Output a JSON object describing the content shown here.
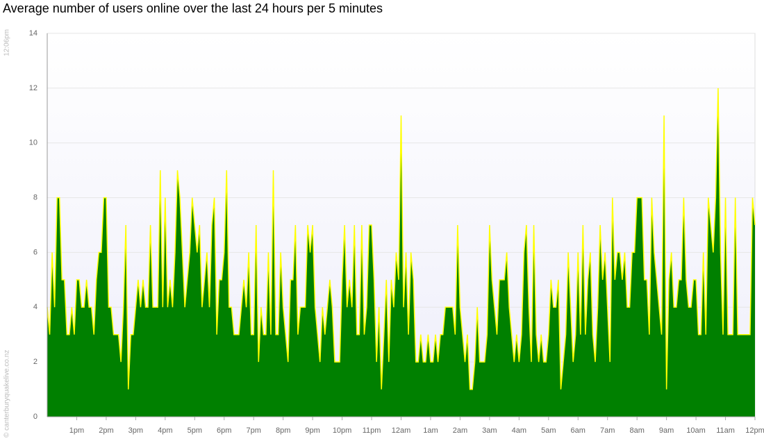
{
  "chart_data": {
    "type": "area",
    "title": "Average number of users online over the last 24 hours per 5 minutes",
    "timestamp": "12:06pm",
    "credit": "© canterburyquakelive.co.nz",
    "categories": [
      null,
      null,
      null,
      null,
      null,
      null,
      null,
      null,
      null,
      null,
      null,
      null,
      "1pm",
      null,
      null,
      null,
      null,
      null,
      null,
      null,
      null,
      null,
      null,
      null,
      "2pm",
      null,
      null,
      null,
      null,
      null,
      null,
      null,
      null,
      null,
      null,
      null,
      "3pm",
      null,
      null,
      null,
      null,
      null,
      null,
      null,
      null,
      null,
      null,
      null,
      "4pm",
      null,
      null,
      null,
      null,
      null,
      null,
      null,
      null,
      null,
      null,
      null,
      "5pm",
      null,
      null,
      null,
      null,
      null,
      null,
      null,
      null,
      null,
      null,
      null,
      "6pm",
      null,
      null,
      null,
      null,
      null,
      null,
      null,
      null,
      null,
      null,
      null,
      "7pm",
      null,
      null,
      null,
      null,
      null,
      null,
      null,
      null,
      null,
      null,
      null,
      "8pm",
      null,
      null,
      null,
      null,
      null,
      null,
      null,
      null,
      null,
      null,
      null,
      "9pm",
      null,
      null,
      null,
      null,
      null,
      null,
      null,
      null,
      null,
      null,
      null,
      "10pm",
      null,
      null,
      null,
      null,
      null,
      null,
      null,
      null,
      null,
      null,
      null,
      "11pm",
      null,
      null,
      null,
      null,
      null,
      null,
      null,
      null,
      null,
      null,
      null,
      "12am",
      null,
      null,
      null,
      null,
      null,
      null,
      null,
      null,
      null,
      null,
      null,
      "1am",
      null,
      null,
      null,
      null,
      null,
      null,
      null,
      null,
      null,
      null,
      null,
      "2am",
      null,
      null,
      null,
      null,
      null,
      null,
      null,
      null,
      null,
      null,
      null,
      "3am",
      null,
      null,
      null,
      null,
      null,
      null,
      null,
      null,
      null,
      null,
      null,
      "4am",
      null,
      null,
      null,
      null,
      null,
      null,
      null,
      null,
      null,
      null,
      null,
      "5am",
      null,
      null,
      null,
      null,
      null,
      null,
      null,
      null,
      null,
      null,
      null,
      "6am",
      null,
      null,
      null,
      null,
      null,
      null,
      null,
      null,
      null,
      null,
      null,
      "7am",
      null,
      null,
      null,
      null,
      null,
      null,
      null,
      null,
      null,
      null,
      null,
      "8am",
      null,
      null,
      null,
      null,
      null,
      null,
      null,
      null,
      null,
      null,
      null,
      "9am",
      null,
      null,
      null,
      null,
      null,
      null,
      null,
      null,
      null,
      null,
      null,
      "10am",
      null,
      null,
      null,
      null,
      null,
      null,
      null,
      null,
      null,
      null,
      null,
      "11am",
      null,
      null,
      null,
      null,
      null,
      null,
      null,
      null,
      null,
      null,
      null,
      "12pm"
    ],
    "values": [
      4,
      3,
      6,
      4,
      8,
      8,
      5,
      5,
      3,
      3,
      4,
      3,
      5,
      5,
      4,
      4,
      5,
      4,
      4,
      3,
      5,
      6,
      6,
      8,
      8,
      4,
      4,
      3,
      3,
      3,
      2,
      4,
      7,
      1,
      3,
      3,
      4,
      5,
      4,
      5,
      4,
      4,
      7,
      4,
      4,
      4,
      9,
      4,
      8,
      4,
      5,
      4,
      6,
      9,
      8,
      6,
      4,
      5,
      6,
      8,
      7,
      6,
      7,
      4,
      5,
      6,
      4,
      7,
      8,
      3,
      5,
      5,
      6,
      9,
      4,
      4,
      3,
      3,
      3,
      4,
      5,
      4,
      6,
      3,
      3,
      7,
      2,
      4,
      3,
      3,
      6,
      3,
      9,
      3,
      3,
      6,
      4,
      3,
      2,
      5,
      5,
      7,
      3,
      4,
      4,
      4,
      7,
      6,
      7,
      4,
      3,
      2,
      4,
      3,
      4,
      5,
      4,
      2,
      2,
      2,
      5,
      7,
      4,
      5,
      4,
      7,
      3,
      3,
      7,
      3,
      4,
      7,
      7,
      5,
      2,
      4,
      1,
      3,
      5,
      2,
      5,
      4,
      6,
      5,
      11,
      4,
      6,
      3,
      6,
      5,
      2,
      2,
      3,
      2,
      2,
      3,
      2,
      2,
      3,
      2,
      3,
      3,
      4,
      4,
      4,
      4,
      3,
      7,
      4,
      3,
      2,
      3,
      1,
      1,
      2,
      4,
      2,
      2,
      2,
      3,
      7,
      5,
      4,
      3,
      5,
      5,
      5,
      6,
      4,
      3,
      2,
      3,
      2,
      3,
      6,
      7,
      4,
      2,
      7,
      3,
      2,
      3,
      2,
      2,
      3,
      5,
      4,
      4,
      5,
      1,
      2,
      3,
      6,
      4,
      2,
      3,
      6,
      3,
      7,
      3,
      5,
      6,
      3,
      2,
      4,
      7,
      5,
      6,
      4,
      2,
      8,
      5,
      6,
      6,
      5,
      6,
      4,
      4,
      6,
      6,
      8,
      8,
      8,
      5,
      5,
      3,
      8,
      6,
      5,
      4,
      3,
      11,
      1,
      5,
      6,
      4,
      4,
      5,
      5,
      8,
      5,
      4,
      4,
      5,
      5,
      3,
      3,
      6,
      3,
      8,
      7,
      6,
      8,
      12,
      6,
      3,
      8,
      3,
      3,
      3,
      8,
      3,
      3,
      3,
      3,
      3,
      3,
      8,
      7
    ],
    "fill_color": "#008000",
    "line_color": "#ffff00",
    "ylim": [
      0,
      14
    ],
    "yticks": [
      0,
      2,
      4,
      6,
      8,
      10,
      12,
      14
    ],
    "grid": true
  }
}
